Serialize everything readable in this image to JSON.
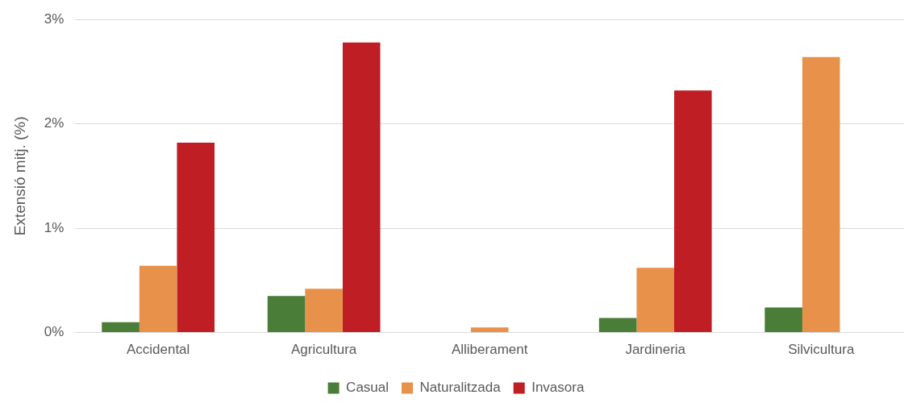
{
  "chart_data": {
    "type": "bar",
    "ylabel": "Extensió mitj. (%)",
    "categories": [
      "Accidental",
      "Agricultura",
      "Alliberament",
      "Jardineria",
      "Silvicultura"
    ],
    "series": [
      {
        "name": "Casual",
        "color": "#4a7d37",
        "values": [
          0.1,
          0.35,
          null,
          0.14,
          0.24
        ]
      },
      {
        "name": "Naturalitzada",
        "color": "#e8914b",
        "values": [
          0.64,
          0.42,
          0.05,
          0.62,
          2.64
        ]
      },
      {
        "name": "Invasora",
        "color": "#bf1e25",
        "values": [
          1.82,
          2.78,
          null,
          2.32,
          null
        ]
      }
    ],
    "ylim": [
      0,
      3
    ],
    "yticks": [
      {
        "value": 0,
        "label": "0%"
      },
      {
        "value": 1,
        "label": "1%"
      },
      {
        "value": 2,
        "label": "2%"
      },
      {
        "value": 3,
        "label": "3%"
      }
    ],
    "grid": "y",
    "legend": "bottom"
  }
}
